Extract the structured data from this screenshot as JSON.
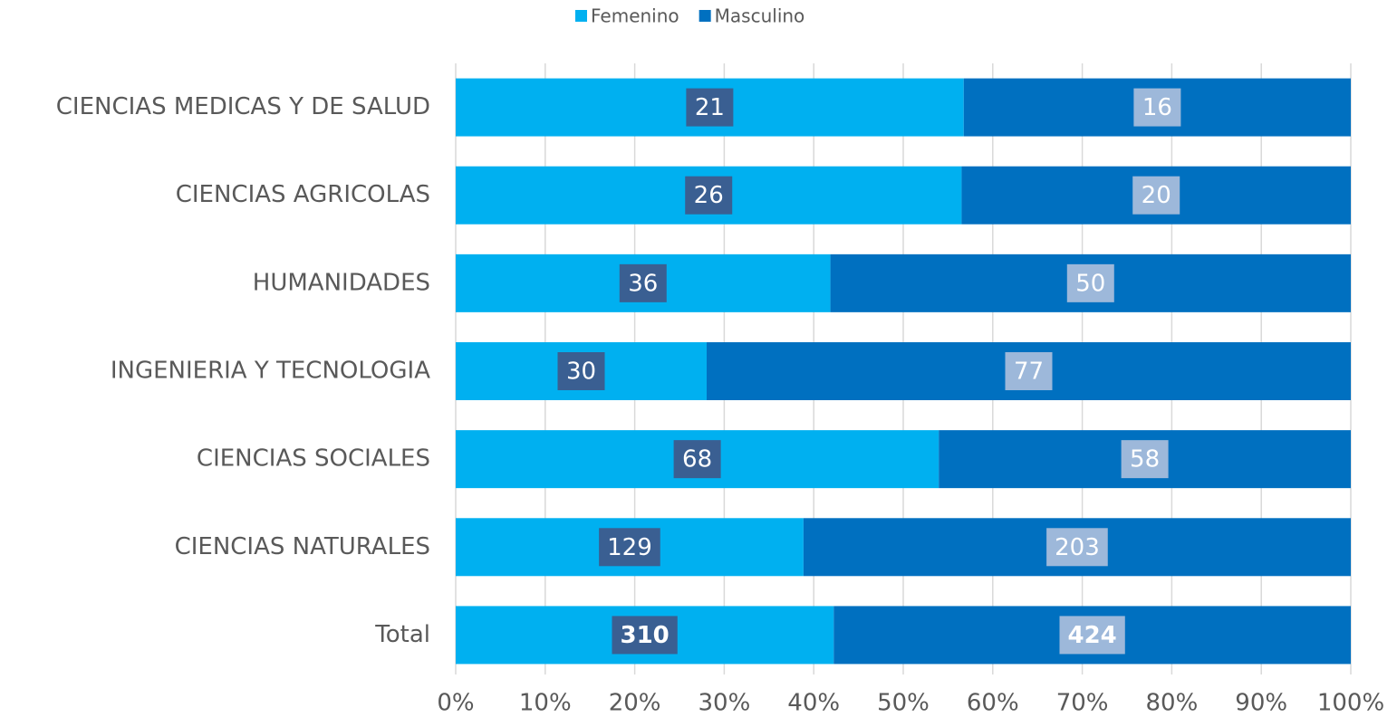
{
  "chart_data": {
    "type": "bar",
    "orientation": "horizontal",
    "stacked": "percent",
    "categories": [
      "CIENCIAS MEDICAS Y DE SALUD",
      "CIENCIAS AGRICOLAS",
      "HUMANIDADES",
      "INGENIERIA Y TECNOLOGIA",
      "CIENCIAS SOCIALES",
      "CIENCIAS NATURALES",
      "Total"
    ],
    "series": [
      {
        "name": "Femenino",
        "color": "#00b0f0",
        "label_box": "#3a5f92",
        "values": [
          21,
          26,
          36,
          30,
          68,
          129,
          310
        ]
      },
      {
        "name": "Masculino",
        "color": "#0070c0",
        "label_box": "#9db8da",
        "values": [
          16,
          20,
          50,
          77,
          58,
          203,
          424
        ]
      }
    ],
    "xlim": [
      0,
      100
    ],
    "xticks": [
      {
        "value": 0,
        "label": "0%"
      },
      {
        "value": 10,
        "label": "10%"
      },
      {
        "value": 20,
        "label": "20%"
      },
      {
        "value": 30,
        "label": "30%"
      },
      {
        "value": 40,
        "label": "40%"
      },
      {
        "value": 50,
        "label": "50%"
      },
      {
        "value": 60,
        "label": "60%"
      },
      {
        "value": 70,
        "label": "70%"
      },
      {
        "value": 80,
        "label": "80%"
      },
      {
        "value": 90,
        "label": "90%"
      },
      {
        "value": 100,
        "label": "100%"
      }
    ],
    "grid": true,
    "legend": "top"
  }
}
